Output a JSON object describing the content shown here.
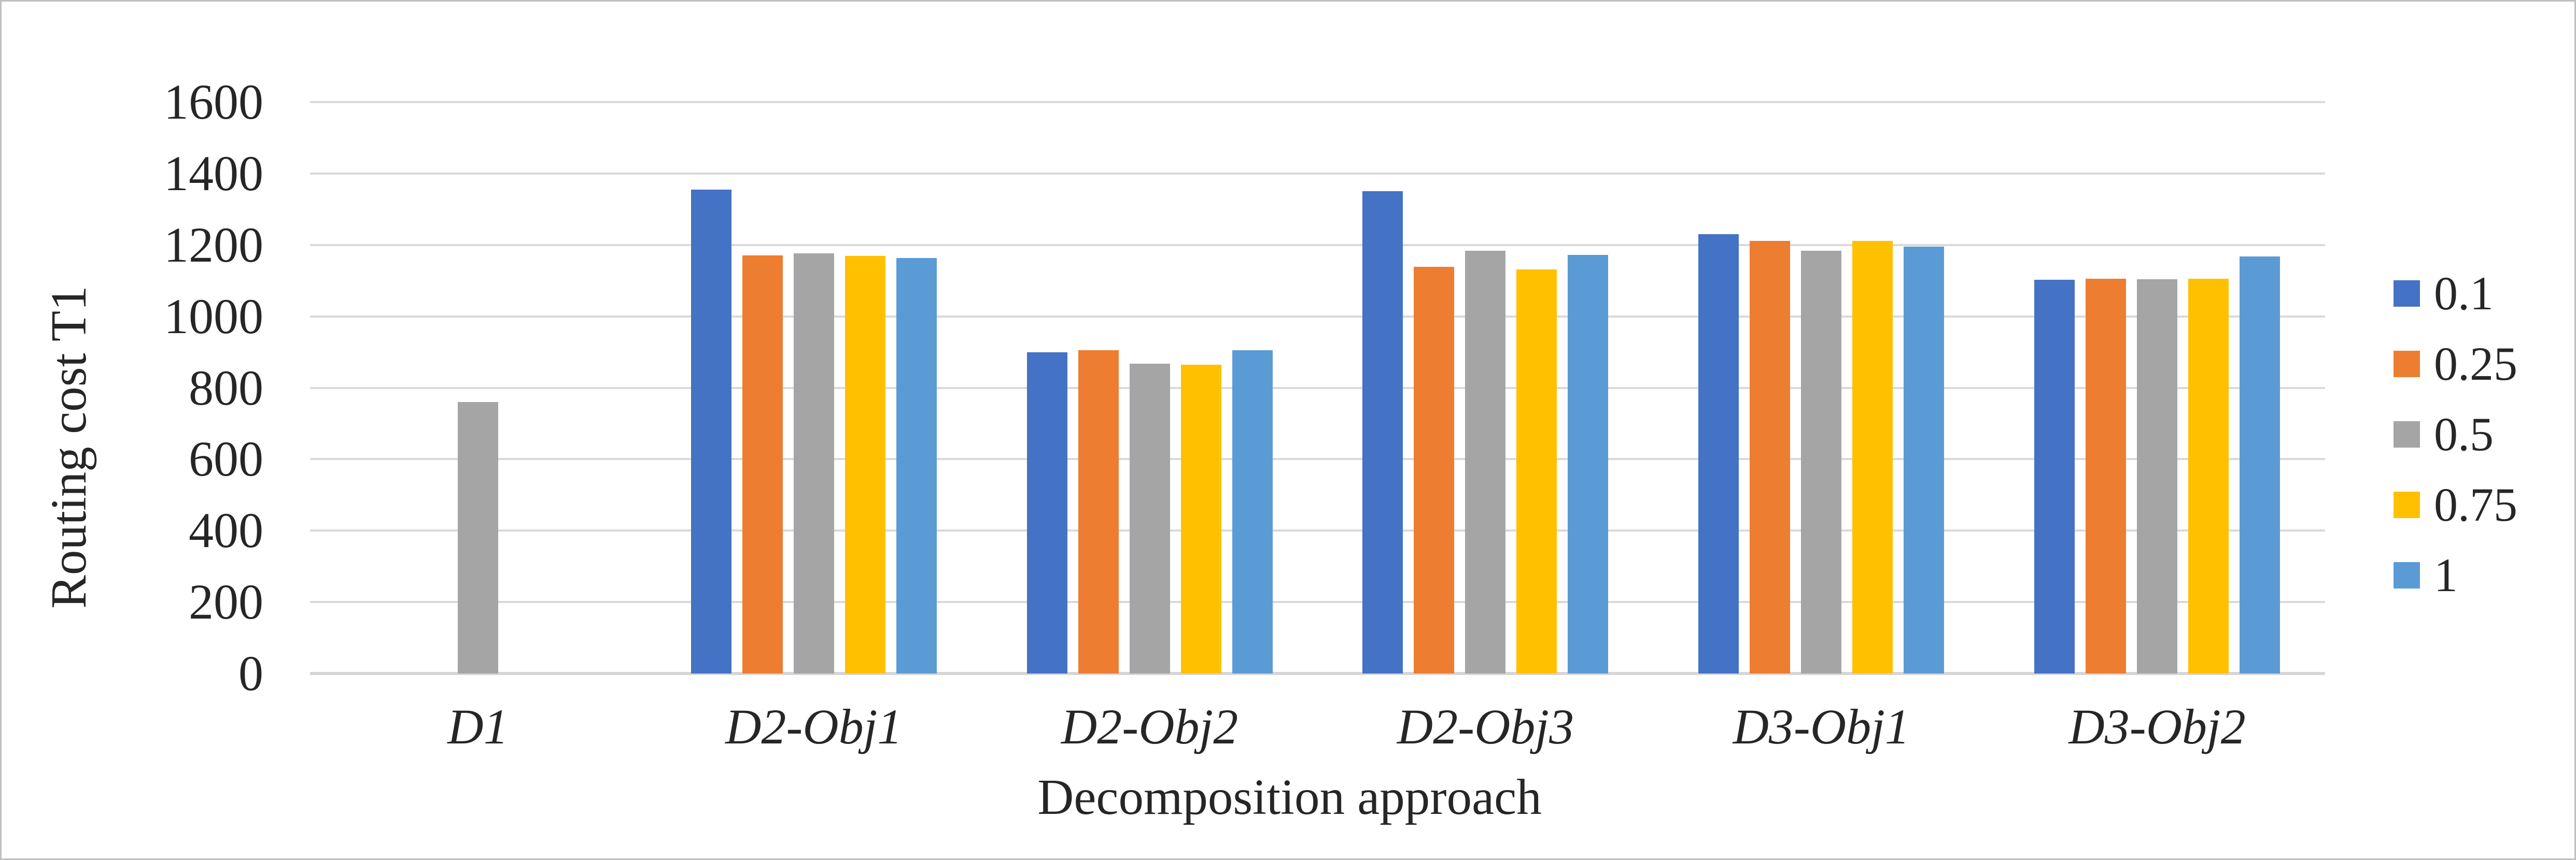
{
  "chart_data": {
    "type": "bar",
    "title": "",
    "xlabel": "Decomposition approach",
    "ylabel": "Routing cost T1",
    "categories": [
      "D1",
      "D2-Obj1",
      "D2-Obj2",
      "D2-Obj3",
      "D3-Obj1",
      "D3-Obj2"
    ],
    "series": [
      {
        "name": "0.1",
        "color": "#4472C4",
        "values": [
          null,
          1355,
          900,
          1350,
          1230,
          1102
        ]
      },
      {
        "name": "0.25",
        "color": "#ED7D31",
        "values": [
          null,
          1170,
          905,
          1138,
          1211,
          1105
        ]
      },
      {
        "name": "0.5",
        "color": "#A5A5A5",
        "values": [
          760,
          1176,
          868,
          1184,
          1183,
          1104
        ]
      },
      {
        "name": "0.75",
        "color": "#FFC000",
        "values": [
          null,
          1169,
          865,
          1132,
          1211,
          1105
        ]
      },
      {
        "name": "1",
        "color": "#5B9BD5",
        "values": [
          null,
          1163,
          905,
          1172,
          1195,
          1167
        ]
      }
    ],
    "ylim": [
      0,
      1600
    ],
    "yticks": [
      0,
      200,
      400,
      600,
      800,
      1000,
      1200,
      1400,
      1600
    ],
    "grid": true,
    "legend_position": "right",
    "category_label_style": "italic"
  },
  "style": {
    "text_color": "#262626",
    "gridline_color": "#D9D9D9",
    "axis_line_color": "#D6D6D6",
    "background": "#FFFFFF",
    "border_color": "#BFBFBF"
  }
}
